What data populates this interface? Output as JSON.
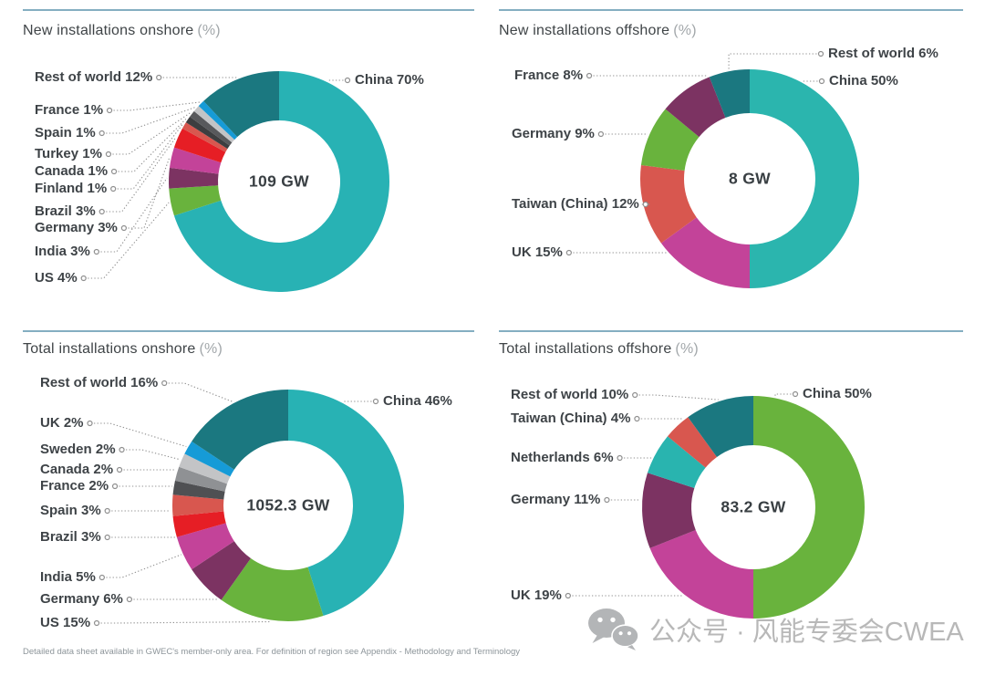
{
  "page": {
    "footnote": "Detailed data sheet available in GWEC's member-only area. For definition of region see Appendix - Methodology and Terminology",
    "watermark": {
      "icon": "wechat-icon",
      "text": "公众号 · 风能专委会CWEA"
    },
    "rule_color": "#84aec1",
    "accent_colors": {
      "teal": "#28b2b4",
      "dark_teal": "#1b7880",
      "green": "#69b33d",
      "magenta": "#c34399",
      "purple": "#7c3362",
      "red": "#e61e25",
      "salmon": "#d8574f",
      "blue": "#169bd7",
      "silver": "#c3c4c6",
      "gray": "#8f9194",
      "charcoal": "#4f5053",
      "near_black": "#3d3e40"
    }
  },
  "chart_data": [
    {
      "type": "pie",
      "subtype": "donut",
      "legend_position": "callouts",
      "grid": false,
      "title": "New installations onshore",
      "unit_suffix": "(%)",
      "center_label": "109 GW",
      "categories": [
        "China",
        "US",
        "India",
        "Germany",
        "Brazil",
        "Finland",
        "Canada",
        "Turkey",
        "Spain",
        "France",
        "Rest of world"
      ],
      "values": [
        70,
        4,
        3,
        3,
        3,
        1,
        1,
        1,
        1,
        1,
        12
      ],
      "colors": [
        "#28b2b4",
        "#69b33d",
        "#7c3362",
        "#c34399",
        "#e61e25",
        "#d8574f",
        "#3d3e40",
        "#58595c",
        "#c3c4c6",
        "#169bd7",
        "#1b7880"
      ]
    },
    {
      "type": "pie",
      "subtype": "donut",
      "legend_position": "callouts",
      "grid": false,
      "title": "New installations offshore",
      "unit_suffix": "(%)",
      "center_label": "8 GW",
      "categories": [
        "China",
        "UK",
        "Taiwan (China)",
        "Germany",
        "France",
        "Rest of world"
      ],
      "values": [
        50,
        15,
        12,
        9,
        8,
        6
      ],
      "colors": [
        "#2bb5ae",
        "#c34399",
        "#d8574f",
        "#69b33d",
        "#7c3362",
        "#1b7880"
      ]
    },
    {
      "type": "pie",
      "subtype": "donut",
      "legend_position": "callouts",
      "grid": false,
      "title": "Total installations onshore",
      "unit_suffix": "(%)",
      "center_label": "1052.3 GW",
      "categories": [
        "China",
        "US",
        "Germany",
        "India",
        "Brazil",
        "Spain",
        "France",
        "Canada",
        "Sweden",
        "UK",
        "Rest of world"
      ],
      "values": [
        46,
        15,
        6,
        5,
        3,
        3,
        2,
        2,
        2,
        2,
        16
      ],
      "colors": [
        "#28b2b4",
        "#69b33d",
        "#7c3362",
        "#c34399",
        "#e61e25",
        "#d8574f",
        "#4f5053",
        "#8f9194",
        "#c3c4c6",
        "#169bd7",
        "#1b7880"
      ]
    },
    {
      "type": "pie",
      "subtype": "donut",
      "legend_position": "callouts",
      "grid": false,
      "title": "Total installations offshore",
      "unit_suffix": "(%)",
      "center_label": "83.2 GW",
      "categories": [
        "China",
        "UK",
        "Germany",
        "Netherlands",
        "Taiwan (China)",
        "Rest of world"
      ],
      "values": [
        50,
        19,
        11,
        6,
        4,
        10
      ],
      "colors": [
        "#69b33d",
        "#c34399",
        "#7c3362",
        "#29b4af",
        "#d8574f",
        "#1b7880"
      ]
    }
  ]
}
